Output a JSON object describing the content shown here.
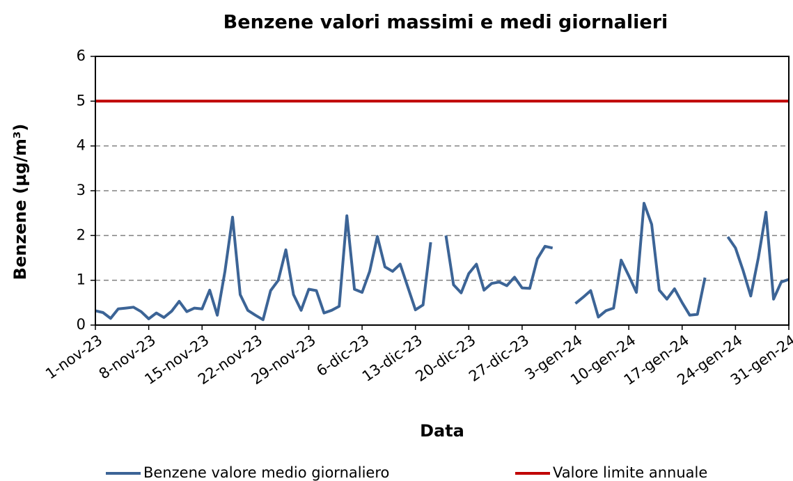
{
  "chart_data": {
    "type": "line",
    "title": "Benzene valori massimi e medi giornalieri",
    "x_label": "Data",
    "y_label": "Benzene (µg/m³)",
    "categories": [
      "1-nov-23",
      null,
      null,
      null,
      null,
      null,
      null,
      "8-nov-23",
      null,
      null,
      null,
      null,
      null,
      null,
      "15-nov-23",
      null,
      null,
      null,
      null,
      null,
      null,
      "22-nov-23",
      null,
      null,
      null,
      null,
      null,
      null,
      "29-nov-23",
      null,
      null,
      null,
      null,
      null,
      null,
      "6-dic-23",
      null,
      null,
      null,
      null,
      null,
      null,
      "13-dic-23",
      null,
      null,
      null,
      null,
      null,
      null,
      "20-dic-23",
      null,
      null,
      null,
      null,
      null,
      null,
      "27-dic-23",
      null,
      null,
      null,
      null,
      null,
      null,
      "3-gen-24",
      null,
      null,
      null,
      null,
      null,
      null,
      "10-gen-24",
      null,
      null,
      null,
      null,
      null,
      null,
      "17-gen-24",
      null,
      null,
      null,
      null,
      null,
      null,
      "24-gen-24",
      null,
      null,
      null,
      null,
      null,
      null,
      "31-gen-24"
    ],
    "series": [
      {
        "name": "Benzene valore medio giornaliero",
        "color": "#3c6496",
        "values": [
          0.32,
          0.28,
          0.15,
          0.36,
          0.38,
          0.4,
          0.3,
          0.14,
          0.27,
          0.17,
          0.31,
          0.53,
          0.3,
          0.38,
          0.36,
          0.78,
          0.22,
          1.2,
          2.41,
          0.68,
          0.33,
          0.22,
          0.12,
          0.77,
          1.0,
          1.68,
          0.68,
          0.33,
          0.8,
          0.77,
          0.27,
          0.33,
          0.42,
          2.44,
          0.8,
          0.73,
          1.2,
          1.98,
          1.3,
          1.2,
          1.36,
          0.85,
          0.34,
          0.45,
          1.85,
          null,
          2.0,
          0.9,
          0.72,
          1.15,
          1.36,
          0.78,
          0.93,
          0.96,
          0.88,
          1.07,
          0.83,
          0.82,
          1.48,
          1.76,
          1.72,
          null,
          null,
          0.48,
          0.62,
          0.77,
          0.18,
          0.32,
          0.38,
          1.45,
          1.1,
          0.73,
          2.72,
          2.25,
          0.78,
          0.58,
          0.81,
          0.5,
          0.22,
          0.24,
          1.06,
          null,
          null,
          1.97,
          1.72,
          1.22,
          0.65,
          1.5,
          2.52,
          0.58,
          0.96,
          1.02
        ]
      },
      {
        "name": "Valore limite annuale",
        "color": "#c00000",
        "values": [
          5,
          5,
          5,
          5,
          5,
          5,
          5,
          5,
          5,
          5,
          5,
          5,
          5,
          5,
          5,
          5,
          5,
          5,
          5,
          5,
          5,
          5,
          5,
          5,
          5,
          5,
          5,
          5,
          5,
          5,
          5,
          5,
          5,
          5,
          5,
          5,
          5,
          5,
          5,
          5,
          5,
          5,
          5,
          5,
          5,
          5,
          5,
          5,
          5,
          5,
          5,
          5,
          5,
          5,
          5,
          5,
          5,
          5,
          5,
          5,
          5,
          5,
          5,
          5,
          5,
          5,
          5,
          5,
          5,
          5,
          5,
          5,
          5,
          5,
          5,
          5,
          5,
          5,
          5,
          5,
          5,
          5,
          5,
          5,
          5,
          5,
          5,
          5,
          5,
          5,
          5,
          5
        ]
      }
    ],
    "ylim": [
      0,
      6
    ],
    "yticks": [
      0,
      1,
      2,
      3,
      4,
      5,
      6
    ],
    "grid": true
  }
}
